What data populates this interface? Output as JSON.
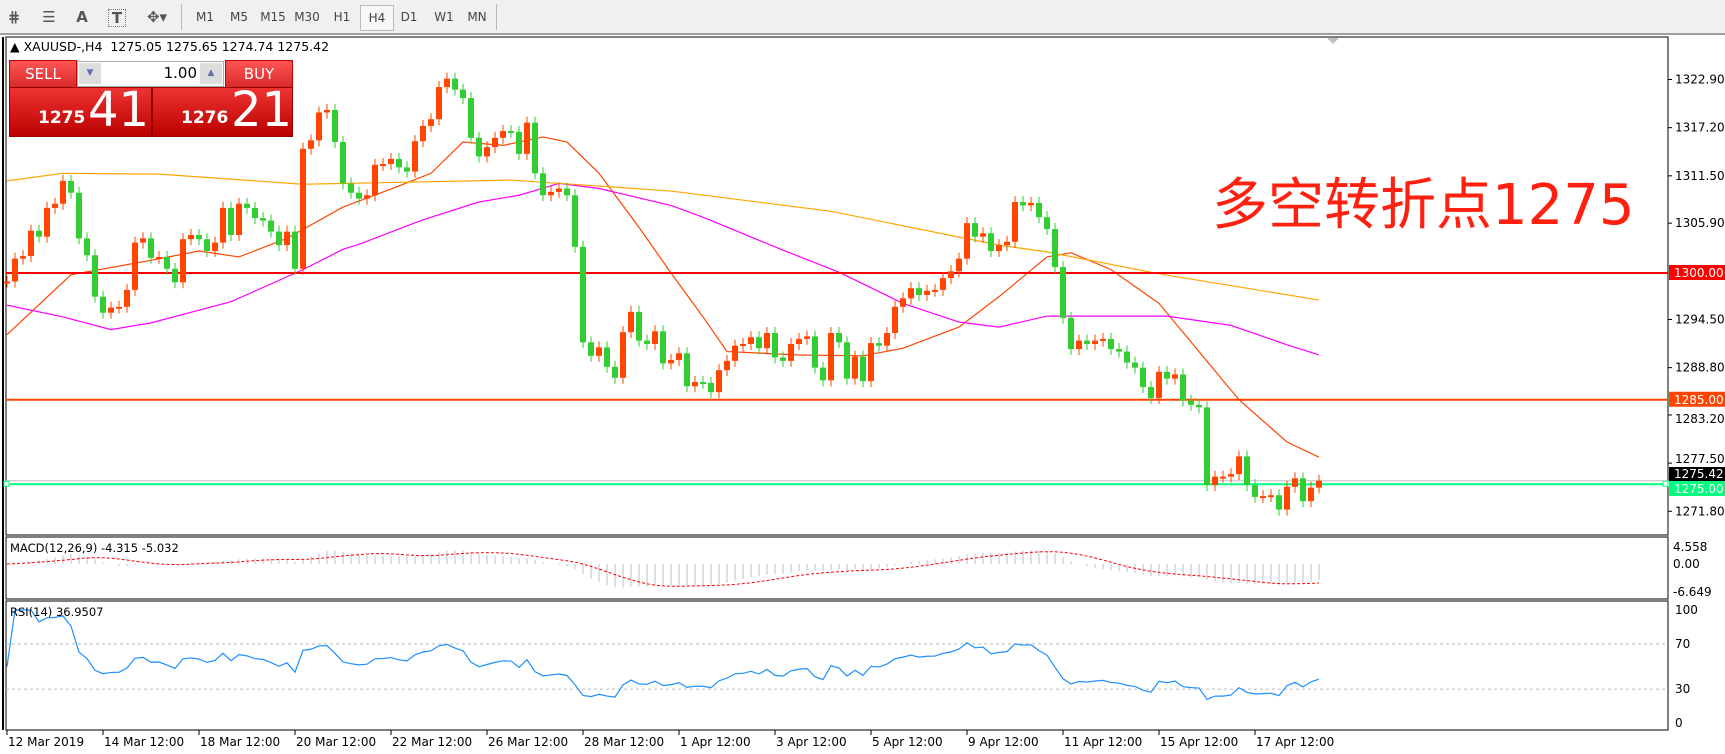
{
  "toolbar": {
    "icons": [
      "elliott-wave-icon",
      "fibonacci-icon",
      "text-icon",
      "text-label-icon",
      "arrows-icon"
    ],
    "text_icon_label": "A",
    "label_icon_label": "T",
    "timeframes": [
      "M1",
      "M5",
      "M15",
      "M30",
      "H1",
      "H4",
      "D1",
      "W1",
      "MN"
    ],
    "active_timeframe": "H4"
  },
  "symbol_header": {
    "symbol": "XAUUSD-,H4",
    "ohlc": "1275.05 1275.65 1274.74 1275.42"
  },
  "trade_panel": {
    "sell_label": "SELL",
    "buy_label": "BUY",
    "lot": "1.00",
    "sell_price_big": "1275",
    "sell_price_pips": "41",
    "buy_price_big": "1276",
    "buy_price_pips": "21"
  },
  "annotation": "多空转折点1275",
  "colors": {
    "bull": "#ff4500",
    "bear": "#32cd32",
    "level_1300": "#ff0000",
    "level_1285": "#ff4500",
    "level_1275": "#00ff7f",
    "ma_fast": "#ff4500",
    "ma_mid": "#ff00ff",
    "ma_slow": "#ffa500",
    "rsi": "#1e90ff",
    "macd_signal": "#ff0000",
    "macd_hist": "#c0c0c0"
  },
  "chart_data": {
    "type": "candlestick",
    "symbol": "XAUUSD-",
    "timeframe": "H4",
    "price_axis_ticks": [
      "1322.90",
      "1317.20",
      "1311.50",
      "1305.90",
      "1294.50",
      "1288.80",
      "1283.20",
      "1277.50",
      "1271.80"
    ],
    "time_axis_labels": [
      "12 Mar 2019",
      "14 Mar 12:00",
      "18 Mar 12:00",
      "20 Mar 12:00",
      "22 Mar 12:00",
      "26 Mar 12:00",
      "28 Mar 12:00",
      "1 Apr 12:00",
      "3 Apr 12:00",
      "5 Apr 12:00",
      "9 Apr 12:00",
      "11 Apr 12:00",
      "15 Apr 12:00",
      "17 Apr 12:00"
    ],
    "closes": [
      1299.0,
      1301.7,
      1302.0,
      1305.0,
      1304.3,
      1307.7,
      1308.2,
      1310.9,
      1309.5,
      1304.1,
      1302.1,
      1297.2,
      1295.3,
      1295.9,
      1296.0,
      1298.0,
      1303.6,
      1304.1,
      1301.8,
      1301.9,
      1300.5,
      1298.9,
      1304.0,
      1304.5,
      1304.0,
      1302.6,
      1303.6,
      1307.7,
      1304.5,
      1308.2,
      1307.7,
      1306.5,
      1306.2,
      1304.9,
      1303.3,
      1304.9,
      1300.5,
      1314.7,
      1315.7,
      1319.0,
      1319.3,
      1315.5,
      1310.6,
      1309.5,
      1308.8,
      1309.2,
      1312.8,
      1312.9,
      1313.5,
      1312.5,
      1312.0,
      1315.6,
      1317.4,
      1318.2,
      1322.0,
      1323.0,
      1321.7,
      1320.7,
      1316.0,
      1313.8,
      1314.9,
      1316.0,
      1316.8,
      1316.7,
      1314.1,
      1317.8,
      1311.8,
      1309.2,
      1309.6,
      1310.0,
      1309.2,
      1303.1,
      1291.8,
      1290.2,
      1291.2,
      1288.9,
      1287.6,
      1293.0,
      1295.4,
      1292.0,
      1291.6,
      1293.1,
      1289.3,
      1289.7,
      1290.5,
      1286.6,
      1287.1,
      1287.0,
      1285.9,
      1288.5,
      1289.6,
      1291.4,
      1291.6,
      1292.4,
      1291.1,
      1292.9,
      1290.0,
      1289.6,
      1291.6,
      1292.2,
      1292.5,
      1288.8,
      1287.3,
      1292.9,
      1291.8,
      1287.5,
      1290.1,
      1287.2,
      1291.7,
      1291.4,
      1292.9,
      1296.0,
      1297.0,
      1298.2,
      1297.4,
      1297.9,
      1298.0,
      1299.4,
      1300.2,
      1301.7,
      1305.9,
      1304.3,
      1304.7,
      1302.6,
      1303.3,
      1303.7,
      1308.4,
      1308.0,
      1308.3,
      1306.6,
      1305.2,
      1300.7,
      1294.7,
      1291.0,
      1292.0,
      1291.6,
      1292.0,
      1292.2,
      1291.0,
      1290.7,
      1289.4,
      1288.8,
      1286.5,
      1285.2,
      1288.3,
      1287.5,
      1288.0,
      1284.9,
      1284.4,
      1284.1,
      1274.9,
      1275.9,
      1275.9,
      1276.2,
      1278.3,
      1274.9,
      1273.5,
      1273.6,
      1273.7,
      1272.0,
      1274.7,
      1275.7,
      1273.0,
      1274.6,
      1275.42
    ],
    "last_bar": {
      "open": 1275.05,
      "high": 1275.65,
      "low": 1274.74,
      "close": 1275.42
    },
    "horizontal_levels": [
      {
        "price": 1300.0,
        "label": "1300.00",
        "color": "#ff0000"
      },
      {
        "price": 1285.0,
        "label": "1285.00",
        "color": "#ff4500"
      },
      {
        "price": 1275.0,
        "label": "1275.00",
        "color": "#00ff7f"
      }
    ],
    "current_price_label": "1275.42",
    "moving_averages": [
      {
        "color": "#ff4500",
        "points": [
          [
            0,
            1292.7
          ],
          [
            8,
            1299.8
          ],
          [
            18,
            1301.5
          ],
          [
            24,
            1302.6
          ],
          [
            29,
            1301.9
          ],
          [
            35,
            1304.1
          ],
          [
            42,
            1307.8
          ],
          [
            49,
            1310.3
          ],
          [
            53,
            1311.8
          ],
          [
            57,
            1315.5
          ],
          [
            62,
            1315.1
          ],
          [
            67,
            1316.1
          ],
          [
            70,
            1315.5
          ],
          [
            74,
            1311.8
          ],
          [
            79,
            1305.4
          ],
          [
            83,
            1300.0
          ],
          [
            87,
            1294.8
          ],
          [
            90,
            1290.7
          ],
          [
            99,
            1290.3
          ],
          [
            107,
            1290.2
          ],
          [
            112,
            1291.1
          ],
          [
            119,
            1293.6
          ],
          [
            124,
            1297.2
          ],
          [
            130,
            1301.9
          ],
          [
            133,
            1302.4
          ],
          [
            138,
            1300.4
          ],
          [
            144,
            1296.4
          ],
          [
            149,
            1290.7
          ],
          [
            154,
            1285.0
          ],
          [
            160,
            1280.0
          ],
          [
            164,
            1278.2
          ]
        ]
      },
      {
        "color": "#ff00ff",
        "points": [
          [
            0,
            1296.2
          ],
          [
            7,
            1294.8
          ],
          [
            13,
            1293.3
          ],
          [
            18,
            1294.1
          ],
          [
            28,
            1296.6
          ],
          [
            37,
            1300.4
          ],
          [
            42,
            1302.8
          ],
          [
            44,
            1303.4
          ],
          [
            52,
            1306.3
          ],
          [
            59,
            1308.4
          ],
          [
            64,
            1309.2
          ],
          [
            69,
            1310.6
          ],
          [
            74,
            1310.0
          ],
          [
            83,
            1308.0
          ],
          [
            87,
            1306.6
          ],
          [
            97,
            1302.7
          ],
          [
            104,
            1300.1
          ],
          [
            112,
            1296.4
          ],
          [
            119,
            1294.2
          ],
          [
            124,
            1293.6
          ],
          [
            130,
            1294.9
          ],
          [
            136,
            1294.9
          ],
          [
            145,
            1294.9
          ],
          [
            153,
            1293.8
          ],
          [
            160,
            1291.5
          ],
          [
            164,
            1290.3
          ]
        ]
      },
      {
        "color": "#ffa500",
        "points": [
          [
            0,
            1310.9
          ],
          [
            7,
            1311.8
          ],
          [
            19,
            1311.7
          ],
          [
            37,
            1310.5
          ],
          [
            63,
            1311.0
          ],
          [
            83,
            1309.7
          ],
          [
            103,
            1307.3
          ],
          [
            124,
            1303.3
          ],
          [
            130,
            1302.5
          ],
          [
            144,
            1299.9
          ],
          [
            164,
            1296.8
          ]
        ]
      }
    ],
    "macd": {
      "label": "MACD(12,26,9) -4.315 -5.032",
      "axis_ticks": [
        "4.558",
        "0.00",
        "-6.649"
      ],
      "range": [
        -6.649,
        4.558
      ]
    },
    "rsi": {
      "label": "RSI(14) 36.9507",
      "axis_ticks": [
        "100",
        "70",
        "30",
        "0"
      ],
      "levels": [
        70,
        30
      ],
      "range": [
        0,
        100
      ]
    }
  }
}
